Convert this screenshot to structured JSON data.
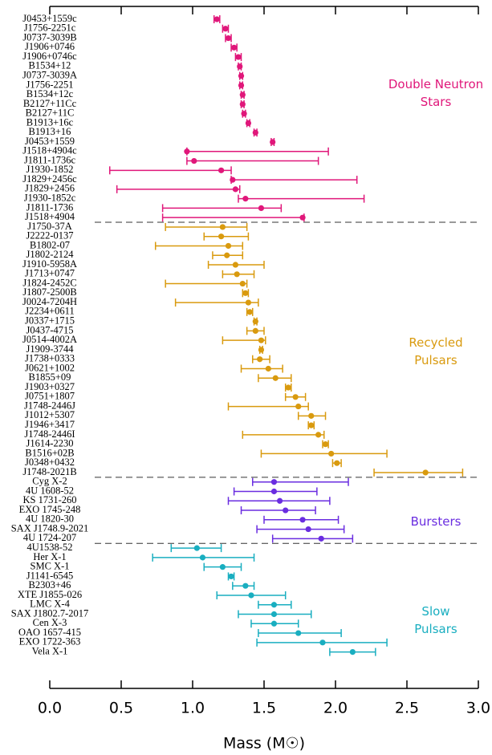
{
  "chart_data": {
    "type": "errorbar",
    "x_label": "Mass (M☉)",
    "xlim": [
      0,
      3.0
    ],
    "xticks": [
      {
        "value": 0,
        "label": "0.0"
      },
      0.5,
      {
        "value": 1,
        "label": "1.0"
      },
      1.5,
      {
        "value": 2,
        "label": "2.0"
      },
      2.5,
      {
        "value": 3,
        "label": "3.0"
      }
    ],
    "series": [
      {
        "name": "Double Neutron Stars",
        "color": "#e0177a",
        "categories": [
          "J0453+1559c",
          "J1756-2251c",
          "J0737-3039B",
          "J1906+0746",
          "J1906+0746c",
          "B1534+12",
          "J0737-3039A",
          "J1756-2251",
          "B1534+12c",
          "B2127+11Cc",
          "B2127+11C",
          "B1913+16c",
          "B1913+16",
          "J0453+1559",
          "J1518+4904c",
          "J1811-1736c",
          "J1930-1852",
          "J1829+2456c",
          "J1829+2456",
          "J1930-1852c",
          "J1811-1736",
          "J1518+4904"
        ],
        "values": [
          1.17,
          1.23,
          1.25,
          1.29,
          1.32,
          1.33,
          1.34,
          1.34,
          1.35,
          1.35,
          1.36,
          1.39,
          1.44,
          1.56,
          0.96,
          1.01,
          1.2,
          1.28,
          1.3,
          1.37,
          1.48,
          1.77
        ],
        "lower": [
          1.15,
          1.21,
          1.23,
          1.27,
          1.3,
          1.32,
          1.33,
          1.33,
          1.34,
          1.34,
          1.35,
          1.38,
          1.43,
          1.55,
          0.96,
          0.96,
          0.42,
          1.27,
          0.47,
          1.32,
          0.79,
          0.79
        ],
        "upper": [
          1.19,
          1.25,
          1.27,
          1.31,
          1.34,
          1.34,
          1.35,
          1.35,
          1.36,
          1.36,
          1.37,
          1.4,
          1.45,
          1.57,
          1.95,
          1.88,
          1.27,
          2.15,
          1.33,
          2.2,
          1.62,
          1.78
        ]
      },
      {
        "name": "Recycled Pulsars",
        "color": "#d99a0e",
        "categories": [
          "J1750-37A",
          "J2222-0137",
          "B1802-07",
          "J1802-2124",
          "J1910-5958A",
          "J1713+0747",
          "J1824-2452C",
          "J1807-2500B",
          "J0024-7204H",
          "J2234+0611",
          "J0337+1715",
          "J0437-4715",
          "J0514-4002A",
          "J1909-3744",
          "J1738+0333",
          "J0621+1002",
          "B1855+09",
          "J1903+0327",
          "J0751+1807",
          "J1748-2446J",
          "J1012+5307",
          "J1946+3417",
          "J1748-2446I",
          "J1614-2230",
          "B1516+02B",
          "J0348+0432",
          "J1748-2021B"
        ],
        "values": [
          1.21,
          1.2,
          1.25,
          1.24,
          1.3,
          1.31,
          1.35,
          1.37,
          1.39,
          1.4,
          1.44,
          1.44,
          1.48,
          1.48,
          1.47,
          1.53,
          1.58,
          1.67,
          1.72,
          1.74,
          1.83,
          1.83,
          1.88,
          1.93,
          1.97,
          2.01,
          2.63
        ],
        "lower": [
          0.81,
          1.08,
          0.74,
          1.14,
          1.11,
          1.21,
          0.81,
          1.35,
          0.88,
          1.38,
          1.43,
          1.38,
          1.21,
          1.47,
          1.42,
          1.34,
          1.46,
          1.65,
          1.65,
          1.25,
          1.74,
          1.81,
          1.35,
          1.91,
          1.48,
          1.98,
          2.27
        ],
        "upper": [
          1.38,
          1.39,
          1.35,
          1.35,
          1.5,
          1.43,
          1.38,
          1.39,
          1.46,
          1.42,
          1.45,
          1.5,
          1.51,
          1.49,
          1.54,
          1.63,
          1.69,
          1.69,
          1.79,
          1.81,
          1.93,
          1.85,
          1.92,
          1.95,
          2.36,
          2.04,
          2.89
        ]
      },
      {
        "name": "Bursters",
        "color": "#6a2de0",
        "categories": [
          "Cyg X-2",
          "4U 1608-52",
          "KS 1731-260",
          "EXO 1745-248",
          "4U 1820-30",
          "SAX J1748.9-2021",
          "4U 1724-207"
        ],
        "values": [
          1.57,
          1.57,
          1.61,
          1.65,
          1.77,
          1.81,
          1.9
        ],
        "lower": [
          1.42,
          1.29,
          1.25,
          1.34,
          1.5,
          1.45,
          1.56
        ],
        "upper": [
          2.09,
          1.87,
          1.96,
          1.86,
          2.02,
          2.06,
          2.12
        ]
      },
      {
        "name": "Slow Pulsars",
        "color": "#19aec0",
        "categories": [
          "4U1538-52",
          "Her X-1",
          "SMC X-1",
          "J1141-6545",
          "B2303+46",
          "XTE J1855-026",
          "LMC X-4",
          "SAX J1802.7-2017",
          "Cen X-3",
          "OAO 1657-415",
          "EXO 1722-363",
          "Vela X-1"
        ],
        "values": [
          1.03,
          1.07,
          1.21,
          1.27,
          1.37,
          1.41,
          1.57,
          1.57,
          1.57,
          1.74,
          1.91,
          2.12
        ],
        "lower": [
          0.85,
          0.72,
          1.08,
          1.25,
          1.28,
          1.17,
          1.46,
          1.32,
          1.41,
          1.46,
          1.45,
          1.96
        ],
        "upper": [
          1.2,
          1.43,
          1.34,
          1.29,
          1.43,
          1.65,
          1.69,
          1.83,
          1.74,
          2.04,
          2.36,
          2.28
        ]
      }
    ]
  }
}
